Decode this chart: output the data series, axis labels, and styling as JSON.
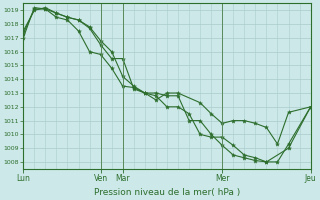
{
  "background_color": "#cce8e8",
  "grid_color": "#aacccc",
  "line_color": "#2d6e2d",
  "marker_color": "#2d6e2d",
  "xlabel": "Pression niveau de la mer( hPa )",
  "ylim": [
    1007.5,
    1019.5
  ],
  "yticks": [
    1008,
    1009,
    1010,
    1011,
    1012,
    1013,
    1014,
    1015,
    1016,
    1017,
    1018,
    1019
  ],
  "day_positions": [
    0.0,
    3.5,
    4.5,
    9.0,
    13.0
  ],
  "day_labels": [
    "Lun",
    "Ven",
    "Mar",
    "Mer",
    "Jeu"
  ],
  "vline_positions": [
    0.0,
    3.5,
    4.5,
    9.0,
    13.0
  ],
  "series1_x": [
    0.0,
    0.5,
    1.0,
    1.5,
    2.0,
    2.5,
    3.0,
    3.5,
    4.0,
    4.5,
    5.0,
    5.5,
    6.0,
    6.5,
    7.0,
    7.5,
    8.0,
    8.5,
    9.0,
    9.5,
    10.0,
    10.5,
    11.0,
    12.0,
    13.0
  ],
  "series1_y": [
    1017.0,
    1019.2,
    1019.1,
    1018.8,
    1018.5,
    1018.3,
    1017.7,
    1016.5,
    1015.5,
    1015.5,
    1013.3,
    1013.0,
    1013.0,
    1012.8,
    1012.8,
    1011.0,
    1011.0,
    1010.0,
    1009.2,
    1008.5,
    1008.3,
    1008.1,
    1008.0,
    1009.0,
    1012.0
  ],
  "series2_x": [
    0.0,
    0.5,
    1.0,
    1.5,
    2.0,
    2.5,
    3.0,
    3.5,
    4.0,
    4.5,
    5.0,
    5.5,
    6.0,
    6.5,
    7.0,
    8.0,
    8.5,
    9.0,
    9.5,
    10.0,
    10.5,
    11.0,
    11.5,
    12.0,
    13.0
  ],
  "series2_y": [
    1017.5,
    1019.0,
    1019.2,
    1018.8,
    1018.5,
    1018.3,
    1017.8,
    1016.8,
    1016.0,
    1014.2,
    1013.5,
    1013.0,
    1012.5,
    1013.0,
    1013.0,
    1012.3,
    1011.5,
    1010.8,
    1011.0,
    1011.0,
    1010.8,
    1010.5,
    1009.3,
    1011.6,
    1012.0
  ],
  "series3_x": [
    0.0,
    0.5,
    1.0,
    1.5,
    2.0,
    2.5,
    3.0,
    3.5,
    4.0,
    4.5,
    5.0,
    5.5,
    6.0,
    6.5,
    7.0,
    7.5,
    8.0,
    8.5,
    9.0,
    9.5,
    10.0,
    10.5,
    11.0,
    11.5,
    12.0,
    13.0
  ],
  "series3_y": [
    1017.3,
    1019.1,
    1019.1,
    1018.5,
    1018.3,
    1017.5,
    1016.0,
    1015.8,
    1014.8,
    1013.5,
    1013.4,
    1013.0,
    1012.8,
    1012.0,
    1012.0,
    1011.5,
    1010.0,
    1009.8,
    1009.8,
    1009.2,
    1008.5,
    1008.3,
    1008.0,
    1008.0,
    1009.3,
    1012.0
  ],
  "xlim": [
    0.0,
    13.0
  ]
}
